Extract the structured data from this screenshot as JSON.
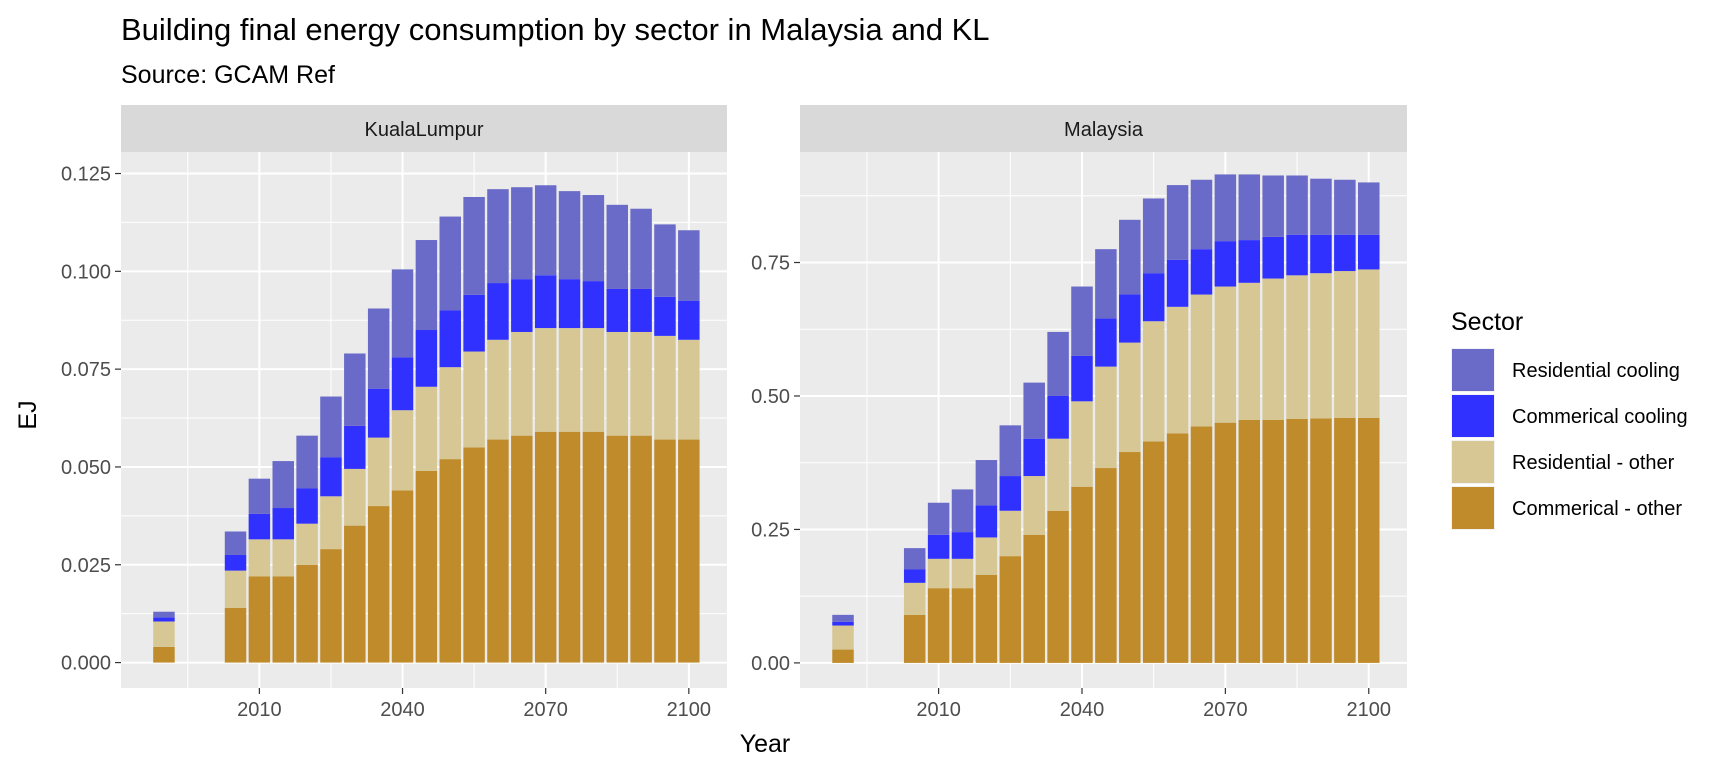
{
  "title": "Building final energy consumption by sector in Malaysia and KL",
  "subtitle": "Source: GCAM Ref",
  "xlabel": "Year",
  "ylabel": "EJ",
  "legend": {
    "title": "Sector",
    "position": "right",
    "items": [
      {
        "name": "Residential cooling",
        "color": "#6A6AC8"
      },
      {
        "name": "Commerical cooling",
        "color": "#3030FF"
      },
      {
        "name": "Residential - other",
        "color": "#D6C794"
      },
      {
        "name": "Commerical - other",
        "color": "#C08C2B"
      }
    ]
  },
  "chart_data": [
    {
      "type": "bar",
      "stacked": true,
      "panel": "KualaLumpur",
      "x": [
        1990,
        2005,
        2010,
        2015,
        2020,
        2025,
        2030,
        2035,
        2040,
        2045,
        2050,
        2055,
        2060,
        2065,
        2070,
        2075,
        2080,
        2085,
        2090,
        2095,
        2100
      ],
      "xlim": [
        1981,
        2108
      ],
      "xticks": [
        2010,
        2040,
        2070,
        2100
      ],
      "ylim": [
        -0.0065,
        0.1305
      ],
      "yticks": [
        "0.000",
        "0.025",
        "0.050",
        "0.075",
        "0.100",
        "0.125"
      ],
      "grid": true,
      "series": [
        {
          "name": "Commerical - other",
          "values": [
            0.004,
            0.014,
            0.022,
            0.022,
            0.025,
            0.029,
            0.035,
            0.04,
            0.044,
            0.049,
            0.052,
            0.055,
            0.057,
            0.058,
            0.059,
            0.059,
            0.059,
            0.058,
            0.058,
            0.057,
            0.057
          ]
        },
        {
          "name": "Residential - other",
          "values": [
            0.0065,
            0.0095,
            0.0095,
            0.0095,
            0.0105,
            0.0135,
            0.0145,
            0.0175,
            0.0205,
            0.0215,
            0.0235,
            0.0245,
            0.0255,
            0.0265,
            0.0265,
            0.0265,
            0.0265,
            0.0265,
            0.0265,
            0.0265,
            0.0255
          ]
        },
        {
          "name": "Commerical cooling",
          "values": [
            0.001,
            0.004,
            0.0065,
            0.008,
            0.009,
            0.01,
            0.011,
            0.0125,
            0.0135,
            0.0145,
            0.0145,
            0.0145,
            0.0145,
            0.0135,
            0.0135,
            0.0125,
            0.012,
            0.011,
            0.011,
            0.01,
            0.01
          ]
        },
        {
          "name": "Residential cooling",
          "values": [
            0.0015,
            0.006,
            0.009,
            0.012,
            0.0135,
            0.0155,
            0.0185,
            0.0205,
            0.0225,
            0.023,
            0.024,
            0.025,
            0.024,
            0.0235,
            0.023,
            0.0225,
            0.022,
            0.0215,
            0.0205,
            0.0185,
            0.018
          ]
        }
      ]
    },
    {
      "type": "bar",
      "stacked": true,
      "panel": "Malaysia",
      "x": [
        1990,
        2005,
        2010,
        2015,
        2020,
        2025,
        2030,
        2035,
        2040,
        2045,
        2050,
        2055,
        2060,
        2065,
        2070,
        2075,
        2080,
        2085,
        2090,
        2095,
        2100
      ],
      "xlim": [
        1981,
        2108
      ],
      "xticks": [
        2010,
        2040,
        2070,
        2100
      ],
      "ylim": [
        -0.047,
        0.957
      ],
      "yticks": [
        "0.00",
        "0.25",
        "0.50",
        "0.75"
      ],
      "grid": true,
      "series": [
        {
          "name": "Commerical - other",
          "values": [
            0.025,
            0.09,
            0.14,
            0.14,
            0.165,
            0.2,
            0.24,
            0.285,
            0.33,
            0.365,
            0.395,
            0.415,
            0.43,
            0.443,
            0.45,
            0.455,
            0.455,
            0.457,
            0.458,
            0.459,
            0.459
          ]
        },
        {
          "name": "Residential - other",
          "values": [
            0.045,
            0.06,
            0.055,
            0.055,
            0.07,
            0.085,
            0.11,
            0.135,
            0.16,
            0.19,
            0.205,
            0.225,
            0.237,
            0.247,
            0.255,
            0.257,
            0.265,
            0.269,
            0.272,
            0.275,
            0.278
          ]
        },
        {
          "name": "Commerical cooling",
          "values": [
            0.007,
            0.025,
            0.045,
            0.05,
            0.06,
            0.065,
            0.07,
            0.08,
            0.085,
            0.09,
            0.09,
            0.09,
            0.088,
            0.085,
            0.085,
            0.08,
            0.078,
            0.076,
            0.072,
            0.068,
            0.065
          ]
        },
        {
          "name": "Residential cooling",
          "values": [
            0.013,
            0.04,
            0.06,
            0.08,
            0.085,
            0.095,
            0.105,
            0.12,
            0.13,
            0.13,
            0.14,
            0.14,
            0.14,
            0.13,
            0.125,
            0.123,
            0.115,
            0.111,
            0.105,
            0.103,
            0.098
          ]
        }
      ]
    }
  ]
}
